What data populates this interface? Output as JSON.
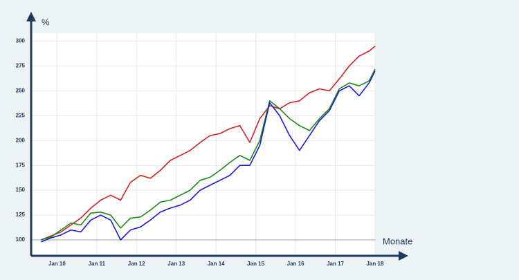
{
  "chart_data": {
    "type": "line",
    "y_label": "%",
    "x_label": "Monate",
    "x": [
      2009.6,
      2009.85,
      2010.1,
      2010.35,
      2010.6,
      2010.85,
      2011.1,
      2011.35,
      2011.6,
      2011.85,
      2012.1,
      2012.35,
      2012.6,
      2012.85,
      2013.1,
      2013.35,
      2013.6,
      2013.85,
      2014.1,
      2014.35,
      2014.6,
      2014.85,
      2015.1,
      2015.35,
      2015.6,
      2015.85,
      2016.1,
      2016.35,
      2016.6,
      2016.85,
      2017.1,
      2017.35,
      2017.6,
      2017.85,
      2018.0
    ],
    "series": [
      {
        "color": "#d42020",
        "values": [
          100,
          104,
          108,
          115,
          122,
          132,
          140,
          145,
          140,
          158,
          165,
          162,
          170,
          180,
          185,
          190,
          198,
          205,
          207,
          212,
          215,
          198,
          222,
          235,
          232,
          238,
          240,
          248,
          252,
          250,
          262,
          275,
          285,
          290,
          295
        ]
      },
      {
        "color": "#1a8a1a",
        "values": [
          100,
          103,
          110,
          117,
          115,
          127,
          128,
          125,
          112,
          122,
          123,
          130,
          138,
          140,
          145,
          150,
          160,
          163,
          170,
          178,
          185,
          180,
          200,
          240,
          232,
          222,
          215,
          210,
          222,
          232,
          252,
          258,
          255,
          260,
          272
        ]
      },
      {
        "color": "#1a1adc",
        "values": [
          98,
          102,
          105,
          110,
          108,
          120,
          125,
          120,
          100,
          110,
          113,
          120,
          128,
          132,
          135,
          140,
          150,
          155,
          160,
          165,
          175,
          175,
          195,
          238,
          225,
          205,
          190,
          205,
          220,
          230,
          250,
          255,
          245,
          258,
          270
        ]
      }
    ],
    "xlim": [
      2009.35,
      2018.0
    ],
    "xticks": [
      {
        "value": 2010,
        "label": "Jan 10"
      },
      {
        "value": 2011,
        "label": "Jan 11"
      },
      {
        "value": 2012,
        "label": "Jan 12"
      },
      {
        "value": 2013,
        "label": "Jan 13"
      },
      {
        "value": 2014,
        "label": "Jan 14"
      },
      {
        "value": 2015,
        "label": "Jan 15"
      },
      {
        "value": 2016,
        "label": "Jan 16"
      },
      {
        "value": 2017,
        "label": "Jan 17"
      },
      {
        "value": 2018,
        "label": "Jan 18"
      }
    ],
    "ylim": [
      84,
      308
    ],
    "yticks": [
      100,
      125,
      150,
      175,
      200,
      225,
      250,
      275,
      300
    ],
    "grid": true
  }
}
